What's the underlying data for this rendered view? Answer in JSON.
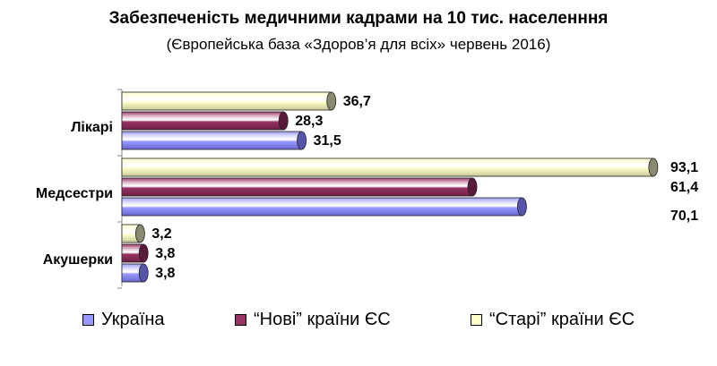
{
  "chart_data": {
    "type": "bar",
    "orientation": "horizontal",
    "title": "Забезпеченість медичними кадрами на 10 тис. населенння",
    "subtitle": "(Європейська база «Здоров’я  для всіх» червень 2016)",
    "categories": [
      "Лікарі",
      "Медсестри",
      "Акушерки"
    ],
    "series": [
      {
        "name": "Україна",
        "color": "#9999ff",
        "values_text": [
          "31,5",
          "70,1",
          "3,8"
        ],
        "values": [
          31.5,
          70.1,
          3.8
        ]
      },
      {
        "name": "“Нові” країни ЄС",
        "color": "#993366",
        "values_text": [
          "28,3",
          "61,4",
          "3,8"
        ],
        "values": [
          28.3,
          61.4,
          3.8
        ]
      },
      {
        "name": "“Старі” країни ЄС",
        "color": "#ffffcc",
        "values_text": [
          "36,7",
          "93,1",
          "3,2"
        ],
        "values": [
          36.7,
          93.1,
          3.2
        ]
      }
    ],
    "xlim": [
      0,
      95
    ],
    "grid": false,
    "legend_position": "bottom"
  }
}
